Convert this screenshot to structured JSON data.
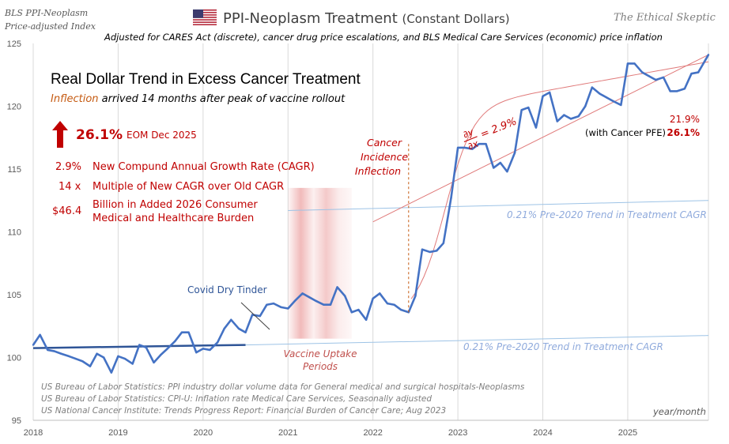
{
  "header": {
    "source_line1": "BLS PPI-Neoplasm",
    "source_line2": "Price-adjusted Index",
    "title_main": "PPI-Neoplasm Treatment",
    "title_paren": "(Constant Dollars)",
    "brand": "The Ethical Skeptic",
    "subtitle": "Adjusted for CARES Act (discrete), cancer drug price escalations, and BLS Medical Care Services (economic) price inflation",
    "flag_icon": "us-flag-icon"
  },
  "callout": {
    "headline": "Real Dollar Trend in Excess Cancer Treatment",
    "inflection_word": "Inflection",
    "inflection_rest": " arrived 14 months after peak of vaccine rollout",
    "big_pct": "26.1%",
    "eom": "EOM Dec 2025",
    "stats": [
      {
        "value": "2.9%",
        "label": "New Compund Annual Growth Rate (CAGR)"
      },
      {
        "value": "14 x",
        "label": "Multiple of New CAGR over Old CAGR"
      },
      {
        "value": "$46.4",
        "label": "Billion in Added 2026 Consumer",
        "label2": "Medical and Healthcare Burden"
      }
    ]
  },
  "sources": [
    "US Bureau of Labor Statistics: PPI industry dollar volume data for General medical and surgical hospitals-Neoplasms",
    "US Bureau of Labor Statistics: CPI-U: Inflation rate Medical Care Services, Seasonally adjusted",
    "US National Cancer Institute: Trends Progress Report: Financial Burden of Cancer Care; Aug 2023"
  ],
  "chart_data": {
    "type": "line",
    "xlabel": "year/month",
    "ylabel": "",
    "ylim": [
      95,
      125
    ],
    "xlim": [
      2018.0,
      2025.95
    ],
    "yticks": [
      95,
      100,
      105,
      110,
      115,
      120,
      125
    ],
    "xticks": [
      2018,
      2019,
      2020,
      2021,
      2022,
      2023,
      2024,
      2025
    ],
    "grid": "vertical",
    "series": [
      {
        "values": [
          [
            2018.0,
            101.0
          ],
          [
            2018.08,
            101.8
          ],
          [
            2018.17,
            100.6
          ],
          [
            2018.25,
            100.5
          ],
          [
            2018.33,
            100.3
          ],
          [
            2018.42,
            100.1
          ],
          [
            2018.5,
            99.9
          ],
          [
            2018.58,
            99.7
          ],
          [
            2018.67,
            99.3
          ],
          [
            2018.75,
            100.3
          ],
          [
            2018.83,
            100.0
          ],
          [
            2018.92,
            98.8
          ],
          [
            2019.0,
            100.1
          ],
          [
            2019.08,
            99.9
          ],
          [
            2019.17,
            99.5
          ],
          [
            2019.25,
            101.0
          ],
          [
            2019.33,
            100.8
          ],
          [
            2019.42,
            99.6
          ],
          [
            2019.5,
            100.2
          ],
          [
            2019.58,
            100.7
          ],
          [
            2019.67,
            101.3
          ],
          [
            2019.75,
            102.0
          ],
          [
            2019.83,
            102.0
          ],
          [
            2019.92,
            100.4
          ],
          [
            2020.0,
            100.7
          ],
          [
            2020.08,
            100.6
          ],
          [
            2020.17,
            101.2
          ],
          [
            2020.25,
            102.3
          ],
          [
            2020.33,
            103.0
          ],
          [
            2020.42,
            102.3
          ],
          [
            2020.5,
            102.0
          ],
          [
            2020.58,
            103.4
          ],
          [
            2020.67,
            103.3
          ],
          [
            2020.75,
            104.2
          ],
          [
            2020.83,
            104.3
          ],
          [
            2020.92,
            104.0
          ],
          [
            2021.0,
            103.9
          ],
          [
            2021.08,
            104.5
          ],
          [
            2021.17,
            105.1
          ],
          [
            2021.25,
            104.8
          ],
          [
            2021.33,
            104.5
          ],
          [
            2021.42,
            104.2
          ],
          [
            2021.5,
            104.2
          ],
          [
            2021.58,
            105.6
          ],
          [
            2021.67,
            104.9
          ],
          [
            2021.75,
            103.6
          ],
          [
            2021.83,
            103.8
          ],
          [
            2021.92,
            103.0
          ],
          [
            2022.0,
            104.7
          ],
          [
            2022.08,
            105.1
          ],
          [
            2022.17,
            104.3
          ],
          [
            2022.25,
            104.2
          ],
          [
            2022.33,
            103.8
          ],
          [
            2022.42,
            103.6
          ],
          [
            2022.5,
            104.9
          ],
          [
            2022.58,
            108.6
          ],
          [
            2022.67,
            108.4
          ],
          [
            2022.75,
            108.5
          ],
          [
            2022.83,
            109.1
          ],
          [
            2022.92,
            112.7
          ],
          [
            2023.0,
            116.7
          ],
          [
            2023.08,
            116.7
          ],
          [
            2023.17,
            116.6
          ],
          [
            2023.25,
            117.0
          ],
          [
            2023.33,
            117.0
          ],
          [
            2023.42,
            115.1
          ],
          [
            2023.5,
            115.5
          ],
          [
            2023.58,
            114.8
          ],
          [
            2023.67,
            116.3
          ],
          [
            2023.75,
            119.7
          ],
          [
            2023.83,
            119.9
          ],
          [
            2023.92,
            118.3
          ],
          [
            2024.0,
            120.8
          ],
          [
            2024.08,
            121.1
          ],
          [
            2024.17,
            118.8
          ],
          [
            2024.25,
            119.3
          ],
          [
            2024.33,
            119.0
          ],
          [
            2024.42,
            119.2
          ],
          [
            2024.5,
            120.0
          ],
          [
            2024.58,
            121.5
          ],
          [
            2024.67,
            121.0
          ],
          [
            2024.75,
            120.7
          ],
          [
            2024.83,
            120.4
          ],
          [
            2024.92,
            120.1
          ],
          [
            2025.0,
            123.4
          ],
          [
            2025.08,
            123.4
          ],
          [
            2025.17,
            122.7
          ],
          [
            2025.25,
            122.4
          ],
          [
            2025.33,
            122.1
          ],
          [
            2025.42,
            122.3
          ],
          [
            2025.5,
            121.2
          ],
          [
            2025.58,
            121.2
          ],
          [
            2025.67,
            121.4
          ],
          [
            2025.75,
            122.6
          ],
          [
            2025.83,
            122.7
          ],
          [
            2025.95,
            124.1
          ]
        ]
      }
    ],
    "trend_lines": [
      {
        "label": "0.21%  Pre-2020 Trend in Treatment CAGR",
        "from": [
          2018.0,
          100.75
        ],
        "to": [
          2020.5,
          101.0
        ],
        "style": "bold-extension"
      },
      {
        "label": "0.21%  Pre-2020 Trend in Treatment CAGR",
        "from": [
          2020.5,
          101.0
        ],
        "to": [
          2025.95,
          101.75
        ],
        "style": "thin"
      },
      {
        "from": [
          2021.0,
          111.7
        ],
        "to": [
          2025.95,
          112.5
        ],
        "style": "thin"
      },
      {
        "from": [
          2022.0,
          110.8
        ],
        "to": [
          2025.95,
          124.1
        ],
        "style": "red-thin"
      }
    ],
    "annotations": {
      "covid": "Covid Dry Tinder",
      "vaccine_line1": "Vaccine Uptake",
      "vaccine_line2": "Periods",
      "cancer_line1": "Cancer",
      "cancer_line2": "Incidence",
      "cancer_line3": "Inflection",
      "deriv_num": "∂y",
      "deriv_den": "∂x",
      "deriv_value": "= 2.9%",
      "pfe_pct1": "21.9%",
      "pfe_label": "(with Cancer PFE)",
      "pfe_pct2": "26.1%",
      "inflection_x": 2022.42,
      "vaccine_band": [
        2021.0,
        2021.75
      ]
    },
    "colors": {
      "series": "#4472c4",
      "trend": "#9dc3e6",
      "trend_bold": "#2f5597",
      "red": "#c00000",
      "red_trend": "#e07a7a",
      "inflection": "#c55a11",
      "band": "#e06666",
      "grid": "#d9d9d9"
    }
  }
}
